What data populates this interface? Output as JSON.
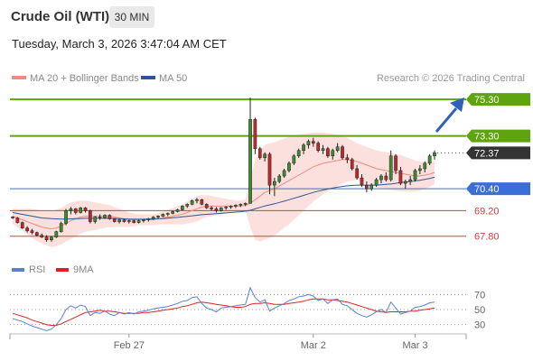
{
  "header": {
    "title": "Crude Oil (WTI)",
    "interval": "30 MIN",
    "datetime": "Tuesday, March 3, 2026 3:47:04 AM CET"
  },
  "legend": {
    "ma20_label": "MA 20 + Bollinger Bands",
    "ma20_color": "#f08a80",
    "ma50_label": "MA 50",
    "ma50_color": "#2f5597",
    "credit": "Research © 2026 Trading Central"
  },
  "rsi_legend": {
    "rsi_label": "RSI",
    "rsi_color": "#5b7fd6",
    "ma9_label": "9MA",
    "ma9_color": "#e02020"
  },
  "chart_data": [
    {
      "type": "candlestick",
      "ylim": [
        66.5,
        76.0
      ],
      "x_labels": [
        "Feb 27",
        "Mar 2",
        "Mar 3"
      ],
      "levels": [
        {
          "value": 75.3,
          "label": "75.30",
          "kind": "resistance",
          "color": "#5da40f"
        },
        {
          "value": 73.3,
          "label": "73.30",
          "kind": "resistance",
          "color": "#5da40f"
        },
        {
          "value": 72.37,
          "label": "72.37",
          "kind": "last",
          "color": "#333333"
        },
        {
          "value": 70.4,
          "label": "70.40",
          "kind": "pivot",
          "color": "#3a6fd8"
        },
        {
          "value": 69.2,
          "label": "69.20",
          "kind": "support",
          "color": "#d04040"
        },
        {
          "value": 67.8,
          "label": "67.80",
          "kind": "support",
          "color": "#d04040"
        }
      ],
      "ohlc": [
        [
          68.85,
          68.9,
          68.75,
          68.8
        ],
        [
          68.8,
          68.85,
          68.5,
          68.55
        ],
        [
          68.55,
          68.6,
          68.2,
          68.25
        ],
        [
          68.25,
          68.35,
          68.0,
          68.1
        ],
        [
          68.1,
          68.2,
          67.9,
          68.0
        ],
        [
          68.0,
          68.05,
          67.8,
          67.85
        ],
        [
          67.85,
          67.95,
          67.7,
          67.75
        ],
        [
          67.75,
          67.85,
          67.5,
          67.6
        ],
        [
          67.6,
          67.8,
          67.5,
          67.75
        ],
        [
          67.75,
          68.1,
          67.7,
          68.05
        ],
        [
          68.05,
          68.6,
          68.0,
          68.5
        ],
        [
          68.5,
          69.3,
          68.4,
          69.2
        ],
        [
          69.2,
          69.4,
          69.0,
          69.3
        ],
        [
          69.3,
          69.35,
          69.0,
          69.1
        ],
        [
          69.1,
          69.4,
          69.05,
          69.35
        ],
        [
          69.35,
          69.4,
          69.1,
          69.2
        ],
        [
          69.2,
          69.25,
          68.5,
          68.6
        ],
        [
          68.6,
          68.9,
          68.5,
          68.85
        ],
        [
          68.85,
          69.0,
          68.7,
          68.8
        ],
        [
          68.8,
          69.0,
          68.75,
          68.95
        ],
        [
          68.95,
          69.0,
          68.7,
          68.75
        ],
        [
          68.75,
          68.8,
          68.55,
          68.6
        ],
        [
          68.6,
          68.75,
          68.5,
          68.7
        ],
        [
          68.7,
          68.75,
          68.55,
          68.6
        ],
        [
          68.6,
          68.7,
          68.5,
          68.65
        ],
        [
          68.65,
          68.7,
          68.5,
          68.55
        ],
        [
          68.55,
          68.7,
          68.5,
          68.65
        ],
        [
          68.65,
          68.75,
          68.55,
          68.7
        ],
        [
          68.7,
          68.8,
          68.6,
          68.75
        ],
        [
          68.75,
          68.9,
          68.7,
          68.85
        ],
        [
          68.85,
          68.95,
          68.75,
          68.9
        ],
        [
          68.9,
          69.05,
          68.85,
          69.0
        ],
        [
          69.0,
          69.1,
          68.9,
          69.05
        ],
        [
          69.05,
          69.2,
          69.0,
          69.15
        ],
        [
          69.15,
          69.3,
          69.1,
          69.25
        ],
        [
          69.25,
          69.5,
          69.2,
          69.45
        ],
        [
          69.45,
          69.6,
          69.35,
          69.55
        ],
        [
          69.55,
          69.8,
          69.5,
          69.75
        ],
        [
          69.75,
          69.9,
          69.6,
          69.8
        ],
        [
          69.8,
          69.85,
          69.5,
          69.55
        ],
        [
          69.55,
          69.6,
          69.3,
          69.35
        ],
        [
          69.35,
          69.45,
          69.2,
          69.3
        ],
        [
          69.3,
          69.4,
          69.1,
          69.2
        ],
        [
          69.2,
          69.4,
          69.15,
          69.35
        ],
        [
          69.35,
          69.45,
          69.25,
          69.4
        ],
        [
          69.4,
          69.5,
          69.3,
          69.45
        ],
        [
          69.45,
          69.55,
          69.35,
          69.5
        ],
        [
          69.5,
          69.6,
          69.4,
          69.55
        ],
        [
          69.55,
          69.65,
          69.45,
          69.6
        ],
        [
          69.6,
          75.4,
          69.6,
          74.2
        ],
        [
          74.2,
          74.3,
          72.3,
          72.6
        ],
        [
          72.6,
          72.7,
          72.0,
          72.1
        ],
        [
          72.1,
          72.4,
          71.9,
          72.3
        ],
        [
          72.3,
          72.4,
          70.1,
          70.6
        ],
        [
          70.6,
          71.0,
          70.0,
          70.8
        ],
        [
          70.8,
          71.2,
          70.7,
          71.1
        ],
        [
          71.1,
          71.5,
          71.0,
          71.4
        ],
        [
          71.4,
          71.9,
          71.3,
          71.8
        ],
        [
          71.8,
          72.3,
          71.7,
          72.2
        ],
        [
          72.2,
          72.6,
          72.1,
          72.5
        ],
        [
          72.5,
          72.9,
          72.3,
          72.8
        ],
        [
          72.8,
          73.1,
          72.6,
          73.0
        ],
        [
          73.0,
          73.2,
          72.7,
          72.9
        ],
        [
          72.9,
          73.0,
          72.4,
          72.5
        ],
        [
          72.5,
          72.8,
          72.3,
          72.6
        ],
        [
          72.6,
          72.7,
          72.1,
          72.2
        ],
        [
          72.2,
          72.6,
          72.0,
          72.5
        ],
        [
          72.5,
          72.9,
          72.4,
          72.7
        ],
        [
          72.7,
          72.8,
          72.0,
          72.1
        ],
        [
          72.1,
          72.3,
          71.8,
          72.0
        ],
        [
          72.0,
          72.1,
          71.4,
          71.5
        ],
        [
          71.5,
          71.7,
          70.9,
          71.0
        ],
        [
          71.0,
          71.2,
          70.5,
          70.6
        ],
        [
          70.6,
          70.8,
          70.2,
          70.4
        ],
        [
          70.4,
          70.7,
          70.3,
          70.6
        ],
        [
          70.6,
          71.0,
          70.5,
          70.9
        ],
        [
          70.9,
          71.2,
          70.7,
          71.1
        ],
        [
          71.1,
          71.3,
          70.8,
          70.9
        ],
        [
          70.9,
          72.5,
          70.8,
          72.2
        ],
        [
          72.2,
          72.3,
          71.2,
          71.4
        ],
        [
          71.4,
          71.6,
          70.6,
          70.7
        ],
        [
          70.7,
          70.9,
          70.4,
          70.8
        ],
        [
          70.8,
          71.1,
          70.6,
          70.9
        ],
        [
          70.9,
          71.5,
          70.8,
          71.4
        ],
        [
          71.4,
          71.7,
          71.2,
          71.5
        ],
        [
          71.5,
          71.9,
          71.3,
          71.8
        ],
        [
          71.8,
          72.3,
          71.7,
          72.2
        ],
        [
          72.2,
          72.5,
          72.0,
          72.37
        ]
      ],
      "ma20": [
        68.9,
        68.8,
        68.7,
        68.6,
        68.5,
        68.4,
        68.3,
        68.25,
        68.2,
        68.25,
        68.35,
        68.5,
        68.65,
        68.75,
        68.85,
        68.9,
        68.9,
        68.9,
        68.9,
        68.9,
        68.9,
        68.85,
        68.8,
        68.75,
        68.7,
        68.7,
        68.7,
        68.7,
        68.7,
        68.7,
        68.75,
        68.8,
        68.85,
        68.9,
        68.95,
        69.0,
        69.1,
        69.2,
        69.3,
        69.4,
        69.45,
        69.45,
        69.45,
        69.45,
        69.45,
        69.45,
        69.45,
        69.45,
        69.5,
        69.6,
        69.8,
        70.0,
        70.2,
        70.3,
        70.4,
        70.55,
        70.7,
        70.85,
        71.0,
        71.15,
        71.3,
        71.45,
        71.6,
        71.7,
        71.8,
        71.85,
        71.9,
        71.95,
        72.0,
        72.0,
        71.95,
        71.9,
        71.8,
        71.7,
        71.6,
        71.5,
        71.45,
        71.4,
        71.35,
        71.3,
        71.25,
        71.2,
        71.15,
        71.1,
        71.1,
        71.15,
        71.2,
        71.3
      ],
      "ma50": [
        69.1,
        69.05,
        69.0,
        68.95,
        68.9,
        68.85,
        68.8,
        68.78,
        68.76,
        68.75,
        68.74,
        68.74,
        68.75,
        68.76,
        68.77,
        68.78,
        68.78,
        68.78,
        68.78,
        68.78,
        68.78,
        68.77,
        68.76,
        68.75,
        68.74,
        68.73,
        68.73,
        68.73,
        68.74,
        68.75,
        68.76,
        68.77,
        68.79,
        68.81,
        68.83,
        68.86,
        68.89,
        68.92,
        68.95,
        68.98,
        69.0,
        69.02,
        69.04,
        69.06,
        69.08,
        69.1,
        69.12,
        69.14,
        69.17,
        69.22,
        69.3,
        69.38,
        69.46,
        69.52,
        69.58,
        69.65,
        69.72,
        69.8,
        69.88,
        69.96,
        70.04,
        70.12,
        70.2,
        70.27,
        70.33,
        70.39,
        70.44,
        70.49,
        70.53,
        70.56,
        70.58,
        70.6,
        70.6,
        70.6,
        70.6,
        70.6,
        70.62,
        70.64,
        70.66,
        70.7,
        70.74,
        70.77,
        70.8,
        70.83,
        70.87,
        70.92,
        70.97,
        71.03
      ],
      "bb_width": [
        0.4,
        0.5,
        0.6,
        0.7,
        0.8,
        0.85,
        0.9,
        0.95,
        1.0,
        1.0,
        1.0,
        1.0,
        1.0,
        0.95,
        0.9,
        0.85,
        0.8,
        0.75,
        0.7,
        0.65,
        0.6,
        0.55,
        0.5,
        0.45,
        0.4,
        0.35,
        0.3,
        0.3,
        0.3,
        0.3,
        0.3,
        0.35,
        0.4,
        0.45,
        0.5,
        0.55,
        0.6,
        0.65,
        0.7,
        0.65,
        0.6,
        0.55,
        0.5,
        0.45,
        0.4,
        0.35,
        0.3,
        0.3,
        0.3,
        1.3,
        2.2,
        2.5,
        2.6,
        2.6,
        2.55,
        2.5,
        2.45,
        2.4,
        2.3,
        2.2,
        2.1,
        2.0,
        1.9,
        1.8,
        1.7,
        1.6,
        1.5,
        1.4,
        1.3,
        1.2,
        1.1,
        1.0,
        1.0,
        1.0,
        1.0,
        1.0,
        1.0,
        1.0,
        1.0,
        1.0,
        1.0,
        0.95,
        0.9,
        0.85,
        0.8,
        0.75,
        0.7,
        0.65
      ]
    },
    {
      "type": "line",
      "name": "RSI",
      "ylim": [
        20,
        80
      ],
      "y_ticks": [
        70,
        50,
        30
      ],
      "rsi": [
        38,
        36,
        34,
        31,
        28,
        26,
        24,
        22,
        24,
        30,
        38,
        50,
        55,
        52,
        56,
        54,
        42,
        46,
        45,
        48,
        44,
        42,
        46,
        44,
        46,
        44,
        47,
        48,
        49,
        51,
        52,
        53,
        54,
        56,
        58,
        61,
        62,
        66,
        67,
        58,
        52,
        50,
        47,
        52,
        53,
        54,
        55,
        56,
        57,
        79,
        66,
        60,
        63,
        48,
        52,
        55,
        58,
        62,
        64,
        67,
        68,
        70,
        68,
        62,
        64,
        58,
        63,
        64,
        57,
        55,
        50,
        45,
        42,
        40,
        43,
        47,
        50,
        46,
        60,
        52,
        44,
        46,
        48,
        53,
        54,
        56,
        59,
        60
      ],
      "ma9": [
        45,
        43,
        41,
        39,
        36,
        34,
        32,
        30,
        29,
        29,
        31,
        34,
        37,
        40,
        43,
        46,
        47,
        48,
        49,
        48,
        48,
        47,
        46,
        45,
        45,
        45,
        45,
        46,
        46,
        47,
        48,
        49,
        50,
        51,
        52,
        54,
        55,
        57,
        59,
        60,
        59,
        58,
        57,
        56,
        55,
        54,
        53,
        53,
        54,
        57,
        58,
        58,
        59,
        58,
        57,
        57,
        57,
        58,
        59,
        60,
        61,
        63,
        64,
        64,
        64,
        63,
        63,
        62,
        61,
        60,
        58,
        56,
        54,
        52,
        50,
        48,
        47,
        46,
        47,
        47,
        47,
        47,
        48,
        48,
        49,
        50,
        51,
        52
      ]
    }
  ]
}
